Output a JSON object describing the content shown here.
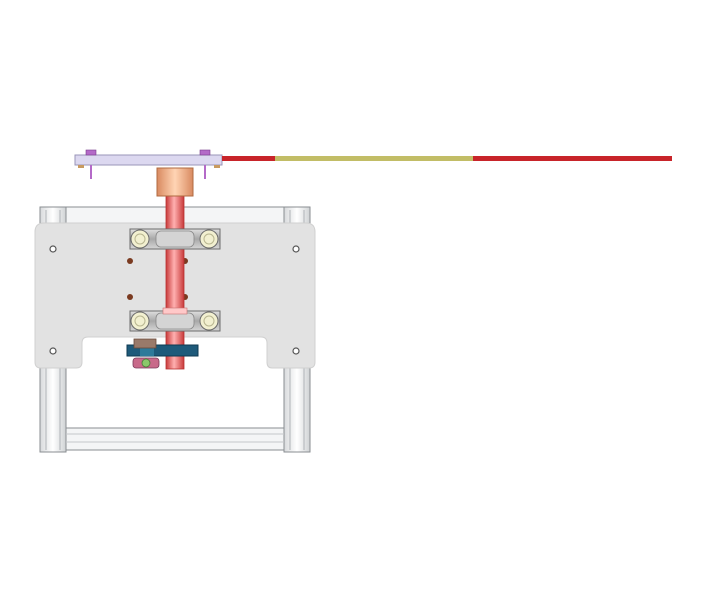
{
  "scene": {
    "description_visible_text": "",
    "background": "#ffffff"
  },
  "colors": {
    "boom_red": "#c8242a",
    "boom_olive": "#c2bd66",
    "top_plate": "#dcd8f0",
    "top_plate_edge": "#9a96b8",
    "bolt_purple": "#b46ac8",
    "bushing_peach": "#f0b48a",
    "mast_red": "#e05a5a",
    "mast_highlight": "#ffb4b4",
    "panel_gray": "#e2e2e2",
    "frame_silver": "#eef0f2",
    "frame_line": "#8a8e92",
    "clamp_gray": "#bfbfbf",
    "bearing_yellow": "#f2f0d0",
    "hole_brown": "#7a3a20",
    "bracket_blue": "#1e5a7a",
    "motor_pink": "#c86a8a"
  },
  "parts": {
    "boom": [
      "boom-segment-red-left",
      "boom-segment-olive",
      "boom-segment-red-right"
    ],
    "fasteners": [
      "bolt-left",
      "bolt-right"
    ],
    "bearings": [
      "bearing-top-left",
      "bearing-top-right",
      "bearing-bottom-left",
      "bearing-bottom-right"
    ]
  }
}
